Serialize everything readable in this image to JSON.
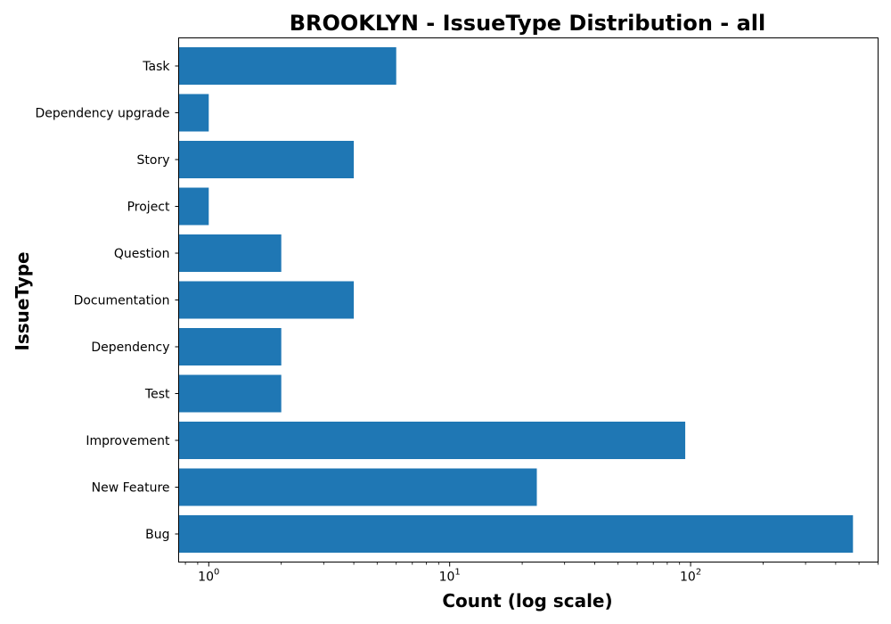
{
  "chart_data": {
    "type": "bar",
    "orientation": "horizontal",
    "title": "BROOKLYN - IssueType Distribution - all",
    "xlabel": "Count (log scale)",
    "ylabel": "IssueType",
    "x_scale": "log",
    "xlim": [
      0.75,
      600
    ],
    "x_major_ticks": [
      {
        "value": 1,
        "base": "10",
        "exp": "0"
      },
      {
        "value": 10,
        "base": "10",
        "exp": "1"
      },
      {
        "value": 100,
        "base": "10",
        "exp": "2"
      }
    ],
    "grid": false,
    "legend": "none",
    "bar_color": "#1f77b4",
    "categories": [
      "Bug",
      "New Feature",
      "Improvement",
      "Test",
      "Dependency",
      "Documentation",
      "Question",
      "Project",
      "Story",
      "Dependency upgrade",
      "Task"
    ],
    "values": [
      472,
      23,
      95,
      2,
      2,
      4,
      2,
      1,
      4,
      1,
      6
    ]
  }
}
